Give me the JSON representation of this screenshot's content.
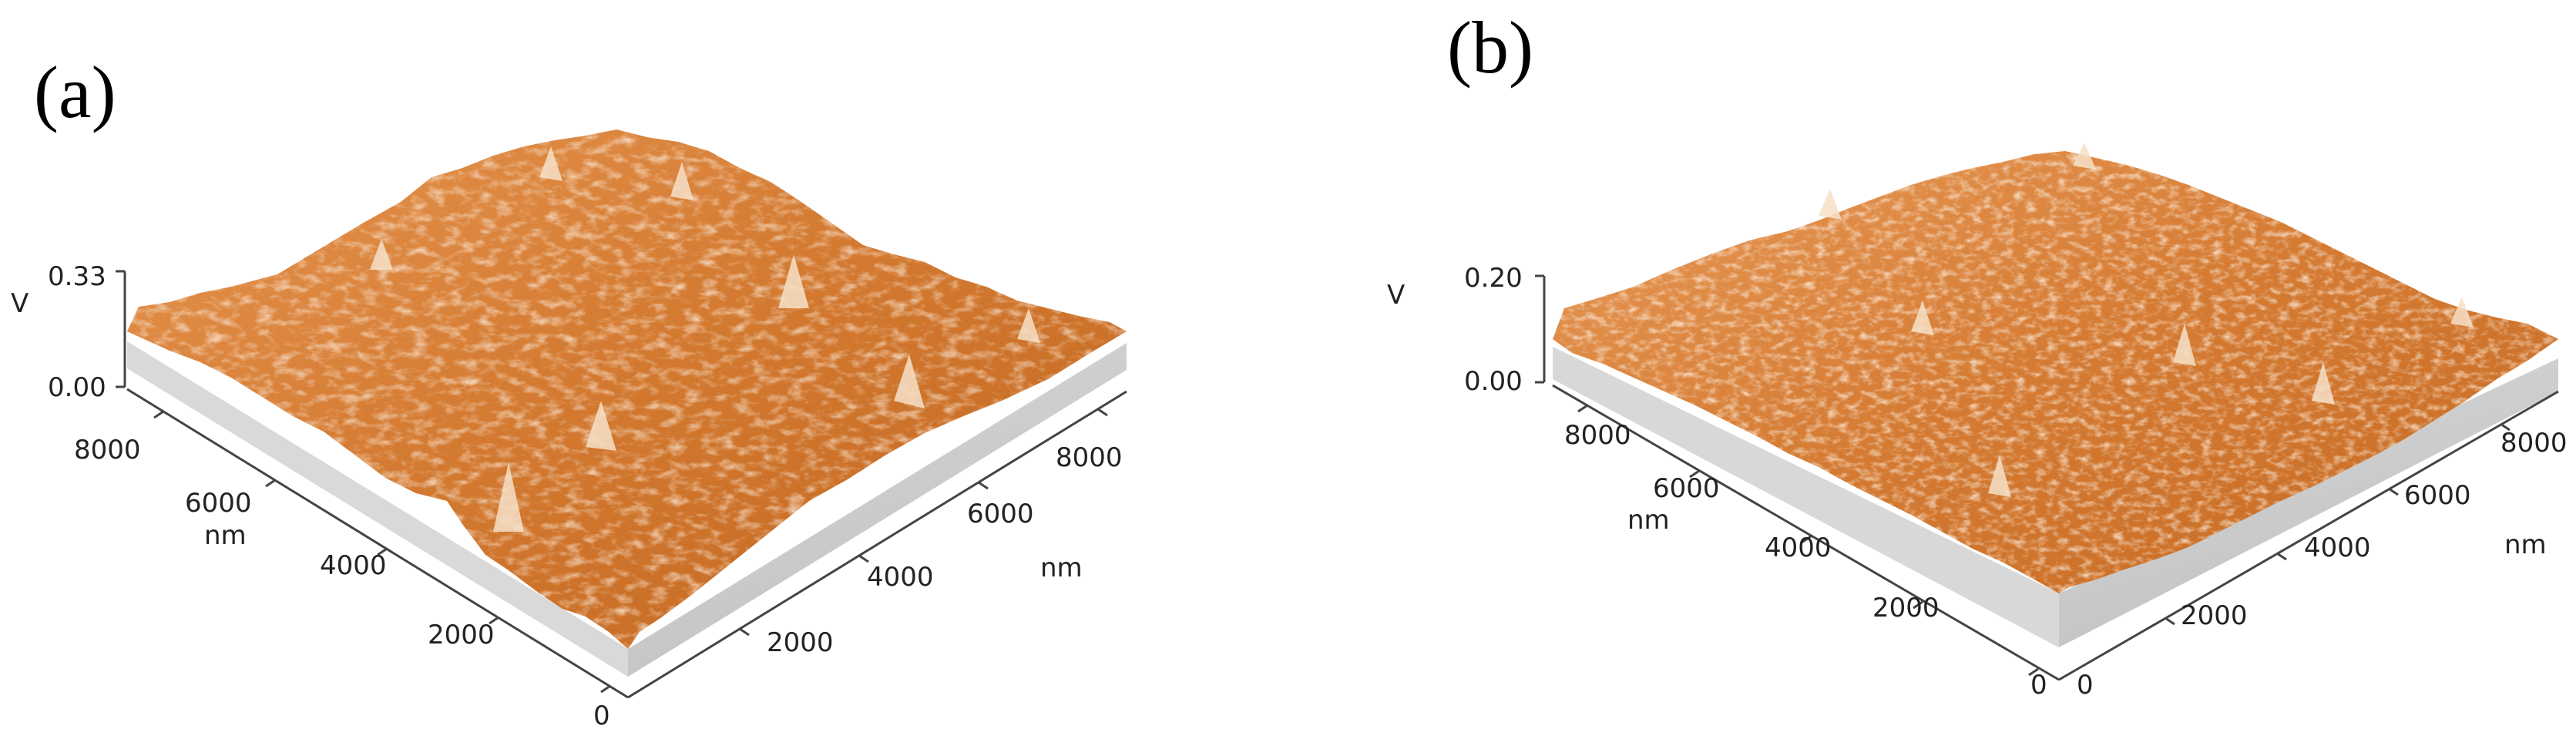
{
  "panels": [
    {
      "label": "(a)",
      "z_unit": "V",
      "z_ticks": [
        "0.33",
        "0.00"
      ],
      "left_axis_ticks": [
        "8000",
        "6000",
        "4000",
        "2000",
        "0"
      ],
      "left_axis_unit": "nm",
      "right_axis_ticks": [
        "2000",
        "4000",
        "6000",
        "8000"
      ],
      "right_axis_unit": "nm",
      "surface_color": "#d2782f",
      "highlight_color": "#f4dcc2",
      "base_color": "#c8c8c8"
    },
    {
      "label": "(b)",
      "z_unit": "V",
      "z_ticks": [
        "0.20",
        "0.00"
      ],
      "left_axis_ticks": [
        "8000",
        "6000",
        "4000",
        "2000",
        "0"
      ],
      "left_axis_unit": "nm",
      "right_axis_ticks": [
        "0",
        "2000",
        "4000",
        "6000",
        "8000"
      ],
      "right_axis_unit": "nm",
      "surface_color": "#d2782f",
      "highlight_color": "#f4dcc2",
      "base_color": "#c8c8c8"
    }
  ]
}
